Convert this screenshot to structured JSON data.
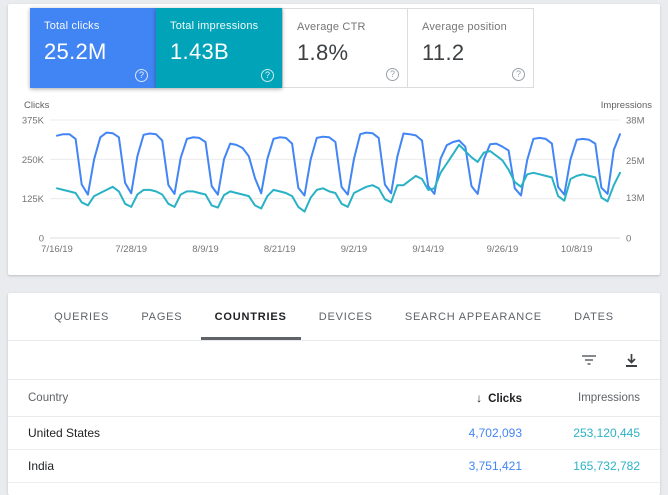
{
  "summary_cards": [
    {
      "label": "Total clicks",
      "value": "25.2M",
      "selected": true,
      "bg": "#4184f3",
      "help": "?"
    },
    {
      "label": "Total impressions",
      "value": "1.43B",
      "selected": true,
      "bg": "#00a3b8",
      "help": "?"
    },
    {
      "label": "Average CTR",
      "value": "1.8%",
      "selected": false,
      "bg": "#ffffff",
      "help": "?"
    },
    {
      "label": "Average position",
      "value": "11.2",
      "selected": false,
      "bg": "#ffffff",
      "help": "?"
    }
  ],
  "chart_data": {
    "type": "line",
    "x_start": "7/16/19",
    "x_end": "10/15/19",
    "x_tick_labels": [
      "7/16/19",
      "7/28/19",
      "8/9/19",
      "8/21/19",
      "9/2/19",
      "9/14/19",
      "9/26/19",
      "10/8/19"
    ],
    "x_label_interval_days": 12,
    "grid": true,
    "left_axis": {
      "title": "Clicks",
      "tick_labels": [
        "375K",
        "250K",
        "125K",
        "0"
      ],
      "tick_values": [
        375,
        250,
        125,
        0
      ],
      "max": 375,
      "unit": "K"
    },
    "right_axis": {
      "title": "Impressions",
      "tick_labels": [
        "38M",
        "25M",
        "13M",
        "0"
      ],
      "tick_values": [
        38,
        25,
        13,
        0
      ],
      "max": 38,
      "unit": "M"
    },
    "series": [
      {
        "name": "Clicks",
        "color": "#4285f4",
        "axis": "left",
        "axis_max": 375,
        "unit": "thousands",
        "values": [
          325,
          330,
          330,
          315,
          170,
          138,
          250,
          320,
          335,
          333,
          320,
          175,
          142,
          260,
          328,
          332,
          330,
          310,
          168,
          140,
          255,
          315,
          320,
          318,
          305,
          165,
          138,
          250,
          300,
          296,
          286,
          260,
          190,
          142,
          252,
          315,
          320,
          318,
          300,
          160,
          135,
          250,
          318,
          322,
          320,
          305,
          162,
          138,
          252,
          330,
          335,
          333,
          318,
          170,
          142,
          258,
          332,
          330,
          326,
          310,
          165,
          140,
          252,
          295,
          305,
          310,
          290,
          165,
          140,
          250,
          298,
          300,
          290,
          278,
          158,
          135,
          248,
          315,
          318,
          315,
          300,
          162,
          138,
          250,
          312,
          315,
          312,
          300,
          160,
          140,
          280,
          330
        ]
      },
      {
        "name": "Impressions",
        "color": "#29b2c5",
        "axis": "right",
        "axis_max": 38,
        "unit": "millions",
        "values": [
          16,
          15.5,
          15,
          14.5,
          11.5,
          10.5,
          13.5,
          14.5,
          15.5,
          16.5,
          15,
          11,
          10,
          14,
          15.5,
          15.5,
          15,
          14,
          11,
          10,
          14,
          15,
          15,
          14.5,
          14,
          10.5,
          9.8,
          13.8,
          15,
          14.5,
          14,
          13.5,
          10.5,
          9.5,
          13.5,
          15.5,
          15,
          14.5,
          13.5,
          10,
          8.5,
          13,
          15.5,
          16,
          15,
          14.5,
          11,
          10,
          14.5,
          15.5,
          16.5,
          17,
          16,
          12.5,
          11.5,
          17,
          17,
          18.5,
          20,
          19,
          15.5,
          16,
          21,
          24,
          27,
          30,
          28,
          26,
          24.5,
          27.5,
          28,
          26.5,
          25,
          22,
          18,
          16.5,
          20.5,
          21,
          20.5,
          20,
          19.5,
          13.5,
          12,
          19,
          20,
          20.5,
          20,
          19.5,
          13,
          11.8,
          17,
          21
        ]
      }
    ]
  },
  "tabs": {
    "items": [
      "QUERIES",
      "PAGES",
      "COUNTRIES",
      "DEVICES",
      "SEARCH APPEARANCE",
      "DATES"
    ],
    "active": "COUNTRIES"
  },
  "table": {
    "columns": {
      "country": "Country",
      "clicks": "Clicks",
      "impressions": "Impressions"
    },
    "sort": {
      "column": "Clicks",
      "arrow": "↓"
    },
    "rows": [
      {
        "country": "United States",
        "clicks": "4,702,093",
        "impressions": "253,120,445"
      },
      {
        "country": "India",
        "clicks": "3,751,421",
        "impressions": "165,732,782"
      }
    ]
  }
}
